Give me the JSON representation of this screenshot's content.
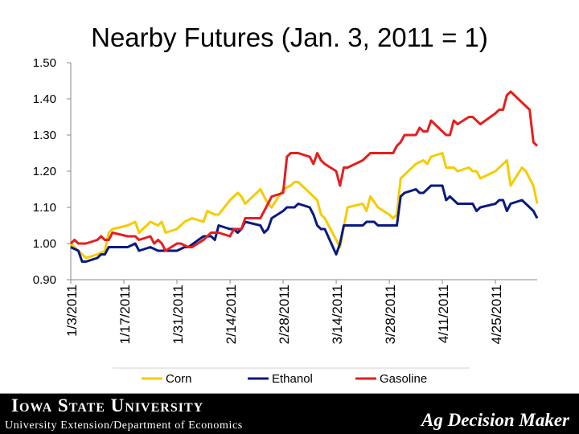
{
  "chart_data": {
    "type": "line",
    "title": "Nearby Futures (Jan. 3, 2011 = 1)",
    "ylim": [
      0.9,
      1.5
    ],
    "yticks": [
      "0.90",
      "1.00",
      "1.10",
      "1.20",
      "1.30",
      "1.40",
      "1.50"
    ],
    "xticks": [
      "1/3/2011",
      "1/17/2011",
      "1/31/2011",
      "2/14/2011",
      "2/28/2011",
      "3/14/2011",
      "3/28/2011",
      "4/11/2011",
      "4/25/2011"
    ],
    "x_range": [
      "2011-01-03",
      "2011-05-06"
    ],
    "grid": false,
    "legend": "bottom",
    "series": [
      {
        "name": "Corn",
        "color": "#f5cc00",
        "points": [
          [
            "2011-01-03",
            1.0
          ],
          [
            "2011-01-05",
            0.98
          ],
          [
            "2011-01-07",
            0.96
          ],
          [
            "2011-01-10",
            0.97
          ],
          [
            "2011-01-12",
            0.98
          ],
          [
            "2011-01-13",
            1.03
          ],
          [
            "2011-01-14",
            1.04
          ],
          [
            "2011-01-18",
            1.05
          ],
          [
            "2011-01-20",
            1.06
          ],
          [
            "2011-01-21",
            1.03
          ],
          [
            "2011-01-24",
            1.06
          ],
          [
            "2011-01-26",
            1.05
          ],
          [
            "2011-01-27",
            1.06
          ],
          [
            "2011-01-28",
            1.03
          ],
          [
            "2011-01-31",
            1.04
          ],
          [
            "2011-02-02",
            1.06
          ],
          [
            "2011-02-04",
            1.07
          ],
          [
            "2011-02-07",
            1.06
          ],
          [
            "2011-02-08",
            1.09
          ],
          [
            "2011-02-10",
            1.08
          ],
          [
            "2011-02-11",
            1.08
          ],
          [
            "2011-02-14",
            1.12
          ],
          [
            "2011-02-16",
            1.14
          ],
          [
            "2011-02-17",
            1.13
          ],
          [
            "2011-02-18",
            1.11
          ],
          [
            "2011-02-22",
            1.15
          ],
          [
            "2011-02-24",
            1.11
          ],
          [
            "2011-02-25",
            1.1
          ],
          [
            "2011-02-28",
            1.15
          ],
          [
            "2011-03-02",
            1.16
          ],
          [
            "2011-03-03",
            1.17
          ],
          [
            "2011-03-04",
            1.17
          ],
          [
            "2011-03-07",
            1.14
          ],
          [
            "2011-03-09",
            1.12
          ],
          [
            "2011-03-10",
            1.08
          ],
          [
            "2011-03-11",
            1.07
          ],
          [
            "2011-03-14",
            1.01
          ],
          [
            "2011-03-15",
            0.99
          ],
          [
            "2011-03-17",
            1.1
          ],
          [
            "2011-03-21",
            1.11
          ],
          [
            "2011-03-22",
            1.09
          ],
          [
            "2011-03-23",
            1.13
          ],
          [
            "2011-03-25",
            1.1
          ],
          [
            "2011-03-28",
            1.08
          ],
          [
            "2011-03-29",
            1.07
          ],
          [
            "2011-03-30",
            1.08
          ],
          [
            "2011-03-31",
            1.18
          ],
          [
            "2011-04-01",
            1.19
          ],
          [
            "2011-04-04",
            1.22
          ],
          [
            "2011-04-06",
            1.23
          ],
          [
            "2011-04-07",
            1.22
          ],
          [
            "2011-04-08",
            1.24
          ],
          [
            "2011-04-11",
            1.25
          ],
          [
            "2011-04-12",
            1.21
          ],
          [
            "2011-04-14",
            1.21
          ],
          [
            "2011-04-15",
            1.2
          ],
          [
            "2011-04-18",
            1.21
          ],
          [
            "2011-04-19",
            1.2
          ],
          [
            "2011-04-20",
            1.2
          ],
          [
            "2011-04-21",
            1.18
          ],
          [
            "2011-04-25",
            1.2
          ],
          [
            "2011-04-27",
            1.22
          ],
          [
            "2011-04-28",
            1.23
          ],
          [
            "2011-04-29",
            1.16
          ],
          [
            "2011-05-02",
            1.21
          ],
          [
            "2011-05-03",
            1.2
          ],
          [
            "2011-05-04",
            1.18
          ],
          [
            "2011-05-05",
            1.16
          ],
          [
            "2011-05-06",
            1.11
          ]
        ]
      },
      {
        "name": "Ethanol",
        "color": "#0a1a80",
        "points": [
          [
            "2011-01-03",
            0.99
          ],
          [
            "2011-01-05",
            0.98
          ],
          [
            "2011-01-06",
            0.95
          ],
          [
            "2011-01-07",
            0.95
          ],
          [
            "2011-01-10",
            0.96
          ],
          [
            "2011-01-11",
            0.97
          ],
          [
            "2011-01-12",
            0.97
          ],
          [
            "2011-01-13",
            0.99
          ],
          [
            "2011-01-18",
            0.99
          ],
          [
            "2011-01-20",
            1.0
          ],
          [
            "2011-01-21",
            0.98
          ],
          [
            "2011-01-24",
            0.99
          ],
          [
            "2011-01-26",
            0.98
          ],
          [
            "2011-01-27",
            0.98
          ],
          [
            "2011-01-28",
            0.98
          ],
          [
            "2011-01-31",
            0.98
          ],
          [
            "2011-02-02",
            0.99
          ],
          [
            "2011-02-03",
            0.99
          ],
          [
            "2011-02-07",
            1.02
          ],
          [
            "2011-02-09",
            1.02
          ],
          [
            "2011-02-10",
            1.01
          ],
          [
            "2011-02-11",
            1.05
          ],
          [
            "2011-02-14",
            1.04
          ],
          [
            "2011-02-15",
            1.04
          ],
          [
            "2011-02-16",
            1.03
          ],
          [
            "2011-02-17",
            1.04
          ],
          [
            "2011-02-18",
            1.06
          ],
          [
            "2011-02-22",
            1.05
          ],
          [
            "2011-02-23",
            1.03
          ],
          [
            "2011-02-24",
            1.04
          ],
          [
            "2011-02-25",
            1.07
          ],
          [
            "2011-02-28",
            1.09
          ],
          [
            "2011-03-01",
            1.1
          ],
          [
            "2011-03-02",
            1.1
          ],
          [
            "2011-03-03",
            1.1
          ],
          [
            "2011-03-04",
            1.11
          ],
          [
            "2011-03-07",
            1.1
          ],
          [
            "2011-03-08",
            1.08
          ],
          [
            "2011-03-09",
            1.05
          ],
          [
            "2011-03-10",
            1.04
          ],
          [
            "2011-03-11",
            1.04
          ],
          [
            "2011-03-14",
            0.97
          ],
          [
            "2011-03-15",
            1.0
          ],
          [
            "2011-03-16",
            1.05
          ],
          [
            "2011-03-17",
            1.05
          ],
          [
            "2011-03-21",
            1.05
          ],
          [
            "2011-03-22",
            1.06
          ],
          [
            "2011-03-24",
            1.06
          ],
          [
            "2011-03-25",
            1.05
          ],
          [
            "2011-03-28",
            1.05
          ],
          [
            "2011-03-29",
            1.05
          ],
          [
            "2011-03-30",
            1.05
          ],
          [
            "2011-03-31",
            1.13
          ],
          [
            "2011-04-01",
            1.14
          ],
          [
            "2011-04-04",
            1.15
          ],
          [
            "2011-04-05",
            1.14
          ],
          [
            "2011-04-06",
            1.14
          ],
          [
            "2011-04-07",
            1.15
          ],
          [
            "2011-04-08",
            1.16
          ],
          [
            "2011-04-11",
            1.16
          ],
          [
            "2011-04-12",
            1.12
          ],
          [
            "2011-04-13",
            1.13
          ],
          [
            "2011-04-14",
            1.12
          ],
          [
            "2011-04-15",
            1.11
          ],
          [
            "2011-04-18",
            1.11
          ],
          [
            "2011-04-19",
            1.11
          ],
          [
            "2011-04-20",
            1.09
          ],
          [
            "2011-04-21",
            1.1
          ],
          [
            "2011-04-25",
            1.11
          ],
          [
            "2011-04-26",
            1.12
          ],
          [
            "2011-04-27",
            1.12
          ],
          [
            "2011-04-28",
            1.09
          ],
          [
            "2011-04-29",
            1.11
          ],
          [
            "2011-05-02",
            1.12
          ],
          [
            "2011-05-03",
            1.11
          ],
          [
            "2011-05-04",
            1.1
          ],
          [
            "2011-05-05",
            1.09
          ],
          [
            "2011-05-06",
            1.07
          ]
        ]
      },
      {
        "name": "Gasoline",
        "color": "#e41f1f",
        "points": [
          [
            "2011-01-03",
            1.0
          ],
          [
            "2011-01-04",
            1.01
          ],
          [
            "2011-01-05",
            1.0
          ],
          [
            "2011-01-06",
            1.0
          ],
          [
            "2011-01-07",
            1.0
          ],
          [
            "2011-01-10",
            1.01
          ],
          [
            "2011-01-11",
            1.02
          ],
          [
            "2011-01-12",
            1.01
          ],
          [
            "2011-01-13",
            1.01
          ],
          [
            "2011-01-14",
            1.03
          ],
          [
            "2011-01-18",
            1.02
          ],
          [
            "2011-01-20",
            1.02
          ],
          [
            "2011-01-21",
            1.01
          ],
          [
            "2011-01-24",
            1.02
          ],
          [
            "2011-01-25",
            1.0
          ],
          [
            "2011-01-26",
            1.01
          ],
          [
            "2011-01-27",
            1.0
          ],
          [
            "2011-01-28",
            0.98
          ],
          [
            "2011-01-31",
            1.0
          ],
          [
            "2011-02-01",
            1.0
          ],
          [
            "2011-02-03",
            0.99
          ],
          [
            "2011-02-04",
            0.99
          ],
          [
            "2011-02-07",
            1.01
          ],
          [
            "2011-02-09",
            1.03
          ],
          [
            "2011-02-10",
            1.03
          ],
          [
            "2011-02-11",
            1.03
          ],
          [
            "2011-02-14",
            1.02
          ],
          [
            "2011-02-15",
            1.04
          ],
          [
            "2011-02-17",
            1.04
          ],
          [
            "2011-02-18",
            1.07
          ],
          [
            "2011-02-22",
            1.07
          ],
          [
            "2011-02-24",
            1.11
          ],
          [
            "2011-02-25",
            1.13
          ],
          [
            "2011-02-28",
            1.14
          ],
          [
            "2011-03-01",
            1.24
          ],
          [
            "2011-03-02",
            1.25
          ],
          [
            "2011-03-03",
            1.25
          ],
          [
            "2011-03-04",
            1.25
          ],
          [
            "2011-03-07",
            1.24
          ],
          [
            "2011-03-08",
            1.22
          ],
          [
            "2011-03-09",
            1.25
          ],
          [
            "2011-03-10",
            1.23
          ],
          [
            "2011-03-11",
            1.22
          ],
          [
            "2011-03-14",
            1.2
          ],
          [
            "2011-03-15",
            1.16
          ],
          [
            "2011-03-16",
            1.21
          ],
          [
            "2011-03-17",
            1.21
          ],
          [
            "2011-03-21",
            1.23
          ],
          [
            "2011-03-22",
            1.24
          ],
          [
            "2011-03-23",
            1.25
          ],
          [
            "2011-03-24",
            1.25
          ],
          [
            "2011-03-25",
            1.25
          ],
          [
            "2011-03-28",
            1.25
          ],
          [
            "2011-03-29",
            1.25
          ],
          [
            "2011-03-30",
            1.27
          ],
          [
            "2011-03-31",
            1.28
          ],
          [
            "2011-04-01",
            1.3
          ],
          [
            "2011-04-04",
            1.3
          ],
          [
            "2011-04-05",
            1.32
          ],
          [
            "2011-04-06",
            1.31
          ],
          [
            "2011-04-07",
            1.31
          ],
          [
            "2011-04-08",
            1.34
          ],
          [
            "2011-04-11",
            1.31
          ],
          [
            "2011-04-12",
            1.3
          ],
          [
            "2011-04-13",
            1.3
          ],
          [
            "2011-04-14",
            1.34
          ],
          [
            "2011-04-15",
            1.33
          ],
          [
            "2011-04-18",
            1.35
          ],
          [
            "2011-04-19",
            1.35
          ],
          [
            "2011-04-20",
            1.34
          ],
          [
            "2011-04-21",
            1.33
          ],
          [
            "2011-04-25",
            1.36
          ],
          [
            "2011-04-26",
            1.37
          ],
          [
            "2011-04-27",
            1.37
          ],
          [
            "2011-04-28",
            1.41
          ],
          [
            "2011-04-29",
            1.42
          ],
          [
            "2011-05-02",
            1.39
          ],
          [
            "2011-05-03",
            1.38
          ],
          [
            "2011-05-04",
            1.37
          ],
          [
            "2011-05-05",
            1.28
          ],
          [
            "2011-05-06",
            1.27
          ]
        ]
      }
    ]
  },
  "footer": {
    "institution": "Iowa State University",
    "department": "University Extension/Department of Economics",
    "brand": "Ag Decision Maker"
  }
}
